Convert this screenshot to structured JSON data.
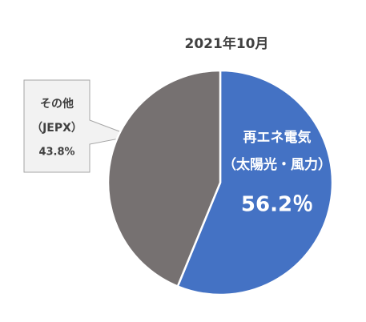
{
  "chart_data": {
    "type": "pie",
    "title": "2021年10月",
    "categories": [
      [
        "再エネ電気",
        "（太陽光・風力）"
      ],
      [
        "その他",
        "（JEPX）"
      ]
    ],
    "values": [
      56.2,
      43.8
    ],
    "value_labels": [
      "56.2％",
      "43.8%"
    ],
    "colors": [
      "#4472c4",
      "#767171"
    ]
  }
}
